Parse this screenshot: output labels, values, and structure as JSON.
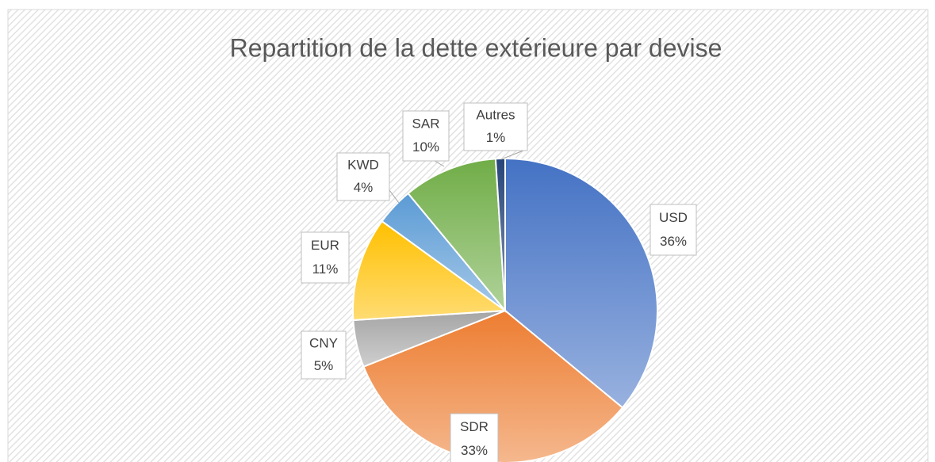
{
  "chart_data": {
    "type": "pie",
    "title": "Repartition de la dette extérieure par devise",
    "categories": [
      "USD",
      "SDR",
      "CNY",
      "EUR",
      "KWD",
      "SAR",
      "Autres"
    ],
    "values": [
      36,
      33,
      5,
      11,
      4,
      10,
      1
    ],
    "value_labels": [
      "36%",
      "33%",
      "5%",
      "11%",
      "4%",
      "10%",
      "1%"
    ],
    "colors": [
      "#4472c4",
      "#ed7d31",
      "#a5a5a5",
      "#ffc000",
      "#5b9bd5",
      "#70ad47",
      "#264478"
    ]
  }
}
